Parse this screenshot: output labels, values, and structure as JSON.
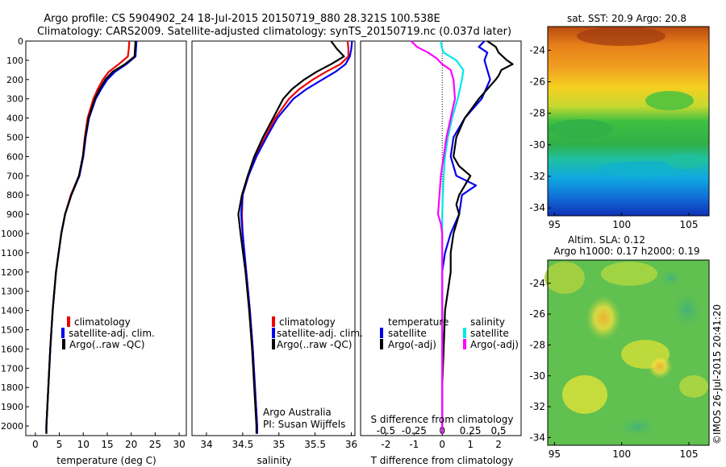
{
  "header": {
    "line1": "Argo profile: CS 5904902_24 18-Jul-2015 20150719_880 28.321S 100.538E",
    "line2": "Climatology: CARS2009. Satellite-adjusted climatology: synTS_20150719.nc (0.037d later)"
  },
  "colors": {
    "climatology": "#ee0000",
    "satellite": "#0000ee",
    "argo": "#000000",
    "salinity_satellite": "#00e8e8",
    "salinity_argo": "#ff00ff"
  },
  "depth_ticks": [
    "0",
    "100",
    "200",
    "300",
    "400",
    "500",
    "600",
    "700",
    "800",
    "900",
    "1000",
    "1100",
    "1200",
    "1300",
    "1400",
    "1500",
    "1600",
    "1700",
    "1800",
    "1900",
    "2000"
  ],
  "credits": {
    "institution": "Argo Australia",
    "pi": "PI: Susan Wijffels",
    "imos_stamp": "©IMOS 26-Jul-2015 20:41:20"
  },
  "chart_data": [
    {
      "type": "line",
      "xlabel": "temperature (deg C)",
      "ylabel": "",
      "xlim": [
        -2,
        31.5
      ],
      "ylim": [
        2050,
        0
      ],
      "xticks": [
        "0",
        "5",
        "10",
        "15",
        "20",
        "25",
        "30"
      ],
      "legend": [
        "climatology",
        "satellite-adj. clim.",
        "Argo(..raw -QC)"
      ],
      "series": [
        {
          "name": "climatology",
          "color": "#ee0000",
          "depth": [
            0,
            40,
            80,
            120,
            160,
            200,
            250,
            300,
            400,
            500,
            600,
            700,
            800,
            900,
            1000,
            1200,
            1400,
            1600,
            1800,
            2000,
            2040
          ],
          "values": [
            19.6,
            19.5,
            19.3,
            17.4,
            15.3,
            14.1,
            13.0,
            12.1,
            10.9,
            10.3,
            9.9,
            9.1,
            7.4,
            6.2,
            5.4,
            4.3,
            3.6,
            3.1,
            2.7,
            2.3,
            2.3
          ]
        },
        {
          "name": "satellite-adj. clim.",
          "color": "#0000ee",
          "depth": [
            0,
            40,
            80,
            120,
            160,
            200,
            250,
            300,
            400,
            500,
            600,
            700,
            800,
            900,
            1000,
            1200,
            1400,
            1600,
            1800,
            2000,
            2040
          ],
          "values": [
            21.1,
            21.0,
            20.9,
            19.0,
            16.6,
            15.0,
            13.7,
            12.6,
            11.2,
            10.5,
            10.0,
            9.2,
            7.5,
            6.2,
            5.4,
            4.3,
            3.6,
            3.1,
            2.7,
            2.3,
            2.3
          ]
        },
        {
          "name": "Argo(..raw -QC)",
          "color": "#000000",
          "depth": [
            0,
            40,
            80,
            120,
            160,
            200,
            250,
            300,
            400,
            500,
            600,
            700,
            800,
            900,
            1000,
            1200,
            1400,
            1600,
            1800,
            2000,
            2040
          ],
          "values": [
            20.9,
            20.8,
            20.7,
            18.7,
            16.1,
            14.6,
            13.4,
            12.4,
            11.1,
            10.4,
            9.9,
            9.1,
            7.5,
            6.2,
            5.4,
            4.3,
            3.6,
            3.1,
            2.7,
            2.3,
            2.3
          ]
        }
      ]
    },
    {
      "type": "line",
      "xlabel": "salinity",
      "ylabel": "",
      "xlim": [
        33.8,
        36.05
      ],
      "ylim": [
        2050,
        0
      ],
      "xticks": [
        "34",
        "34.5",
        "35",
        "35.5",
        "36"
      ],
      "legend": [
        "climatology",
        "satellite-adj. clim.",
        "Argo(..raw -QC)"
      ],
      "series": [
        {
          "name": "climatology",
          "color": "#ee0000",
          "depth": [
            0,
            40,
            80,
            120,
            160,
            200,
            250,
            300,
            400,
            500,
            600,
            700,
            800,
            900,
            1000,
            1200,
            1400,
            1600,
            1800,
            2000,
            2040
          ],
          "values": [
            35.95,
            35.96,
            35.96,
            35.85,
            35.65,
            35.47,
            35.28,
            35.14,
            34.95,
            34.81,
            34.68,
            34.58,
            34.5,
            34.49,
            34.5,
            34.55,
            34.6,
            34.64,
            34.67,
            34.7,
            34.7
          ]
        },
        {
          "name": "satellite-adj. clim.",
          "color": "#0000ee",
          "depth": [
            0,
            40,
            80,
            120,
            160,
            200,
            250,
            300,
            400,
            500,
            600,
            700,
            800,
            900,
            1000,
            1200,
            1400,
            1600,
            1800,
            2000,
            2040
          ],
          "values": [
            36.01,
            36.0,
            35.98,
            35.92,
            35.78,
            35.6,
            35.38,
            35.2,
            34.98,
            34.83,
            34.69,
            34.58,
            34.5,
            34.48,
            34.5,
            34.55,
            34.6,
            34.64,
            34.67,
            34.7,
            34.7
          ]
        },
        {
          "name": "Argo(..raw -QC)",
          "color": "#000000",
          "depth": [
            0,
            40,
            80,
            120,
            160,
            200,
            250,
            300,
            400,
            500,
            600,
            700,
            800,
            900,
            1000,
            1200,
            1400,
            1600,
            1800,
            2000,
            2040
          ],
          "values": [
            35.72,
            35.8,
            35.9,
            35.72,
            35.52,
            35.35,
            35.18,
            35.06,
            34.92,
            34.78,
            34.66,
            34.57,
            34.49,
            34.44,
            34.47,
            34.54,
            34.59,
            34.63,
            34.66,
            34.69,
            34.69
          ]
        }
      ]
    },
    {
      "type": "line",
      "xlabel": "T difference from climatology",
      "title": "S difference from climatology",
      "xlim": [
        -2.9,
        2.8
      ],
      "ylim": [
        2050,
        0
      ],
      "xticks": [
        "-2",
        "-1",
        "0",
        "1",
        "2"
      ],
      "xticks_top": [
        "-0.5",
        "-0.25",
        "0",
        "0.25",
        "0.5"
      ],
      "legend_groups": [
        "temperature",
        "salinity"
      ],
      "legend": [
        "satellite",
        "Argo(-adj)",
        "satellite",
        "Argo(-adj)"
      ],
      "series": [
        {
          "name": "satellite",
          "group": "temperature",
          "color": "#0000ee",
          "depth": [
            0,
            30,
            60,
            100,
            150,
            200,
            300,
            400,
            500,
            600,
            700,
            750,
            800,
            900,
            1000,
            1100,
            1200,
            1400,
            1600,
            1800,
            2000,
            2040
          ],
          "values": [
            1.5,
            1.3,
            1.6,
            1.5,
            1.6,
            1.7,
            1.4,
            0.8,
            0.4,
            0.3,
            0.5,
            1.2,
            0.7,
            0.6,
            0.3,
            0.1,
            0.0,
            0.0,
            0.0,
            0.0,
            0.0,
            0.0
          ]
        },
        {
          "name": "Argo(-adj)",
          "group": "temperature",
          "color": "#000000",
          "depth": [
            0,
            30,
            60,
            100,
            120,
            150,
            180,
            200,
            300,
            400,
            500,
            600,
            650,
            700,
            750,
            800,
            850,
            900,
            1000,
            1100,
            1200,
            1300,
            1400,
            1600,
            1800,
            2000,
            2040
          ],
          "values": [
            1.6,
            1.9,
            2.0,
            2.3,
            2.5,
            2.1,
            2.0,
            1.9,
            1.3,
            0.8,
            0.5,
            0.4,
            0.6,
            1.0,
            0.8,
            0.6,
            0.5,
            0.6,
            0.4,
            0.3,
            0.3,
            0.2,
            0.1,
            0.05,
            0.0,
            0.0,
            0.0
          ]
        },
        {
          "name": "satellite",
          "group": "salinity",
          "color": "#00e8e8",
          "depth": [
            0,
            30,
            60,
            100,
            150,
            200,
            300,
            400,
            500,
            600,
            700,
            800,
            900,
            1000,
            1200,
            1400,
            1600,
            1800,
            2000,
            2040
          ],
          "values": [
            -0.05,
            -0.02,
            0.05,
            0.5,
            0.75,
            0.7,
            0.55,
            0.35,
            0.2,
            0.1,
            0.05,
            0.02,
            0.0,
            0.0,
            0.0,
            0.0,
            0.0,
            0.0,
            0.0,
            0.0
          ]
        },
        {
          "name": "Argo(-adj)",
          "group": "salinity",
          "color": "#ff00ff",
          "depth": [
            0,
            30,
            60,
            90,
            120,
            150,
            200,
            300,
            400,
            500,
            600,
            700,
            800,
            900,
            950,
            1000,
            1100,
            1200,
            1400,
            1600,
            1800,
            2000,
            2040
          ],
          "values": [
            -1.1,
            -0.9,
            -0.5,
            -0.2,
            0.0,
            0.3,
            0.4,
            0.45,
            0.3,
            0.15,
            0.05,
            -0.05,
            -0.1,
            -0.15,
            -0.05,
            0.0,
            0.0,
            0.0,
            0.0,
            0.0,
            0.0,
            0.0,
            0.0
          ]
        }
      ]
    },
    {
      "type": "heatmap",
      "title": "sat. SST: 20.9  Argo: 20.8",
      "xlim": [
        94.5,
        106.5
      ],
      "ylim": [
        -34.5,
        -22.5
      ],
      "xticks": [
        "95",
        "100",
        "105"
      ],
      "yticks": [
        "-24",
        "-26",
        "-28",
        "-30",
        "-32",
        "-34"
      ],
      "description_values": {
        "sat_sst": 20.9,
        "argo_sst": 20.8
      }
    },
    {
      "type": "heatmap",
      "title": "Altim. SLA: 0.12",
      "subtitle": "Argo h1000: 0.17 h2000: 0.19",
      "xlim": [
        94.5,
        106.5
      ],
      "ylim": [
        -34.5,
        -22.5
      ],
      "xticks": [
        "95",
        "100",
        "105"
      ],
      "yticks": [
        "-24",
        "-26",
        "-28",
        "-30",
        "-32",
        "-34"
      ]
    }
  ]
}
